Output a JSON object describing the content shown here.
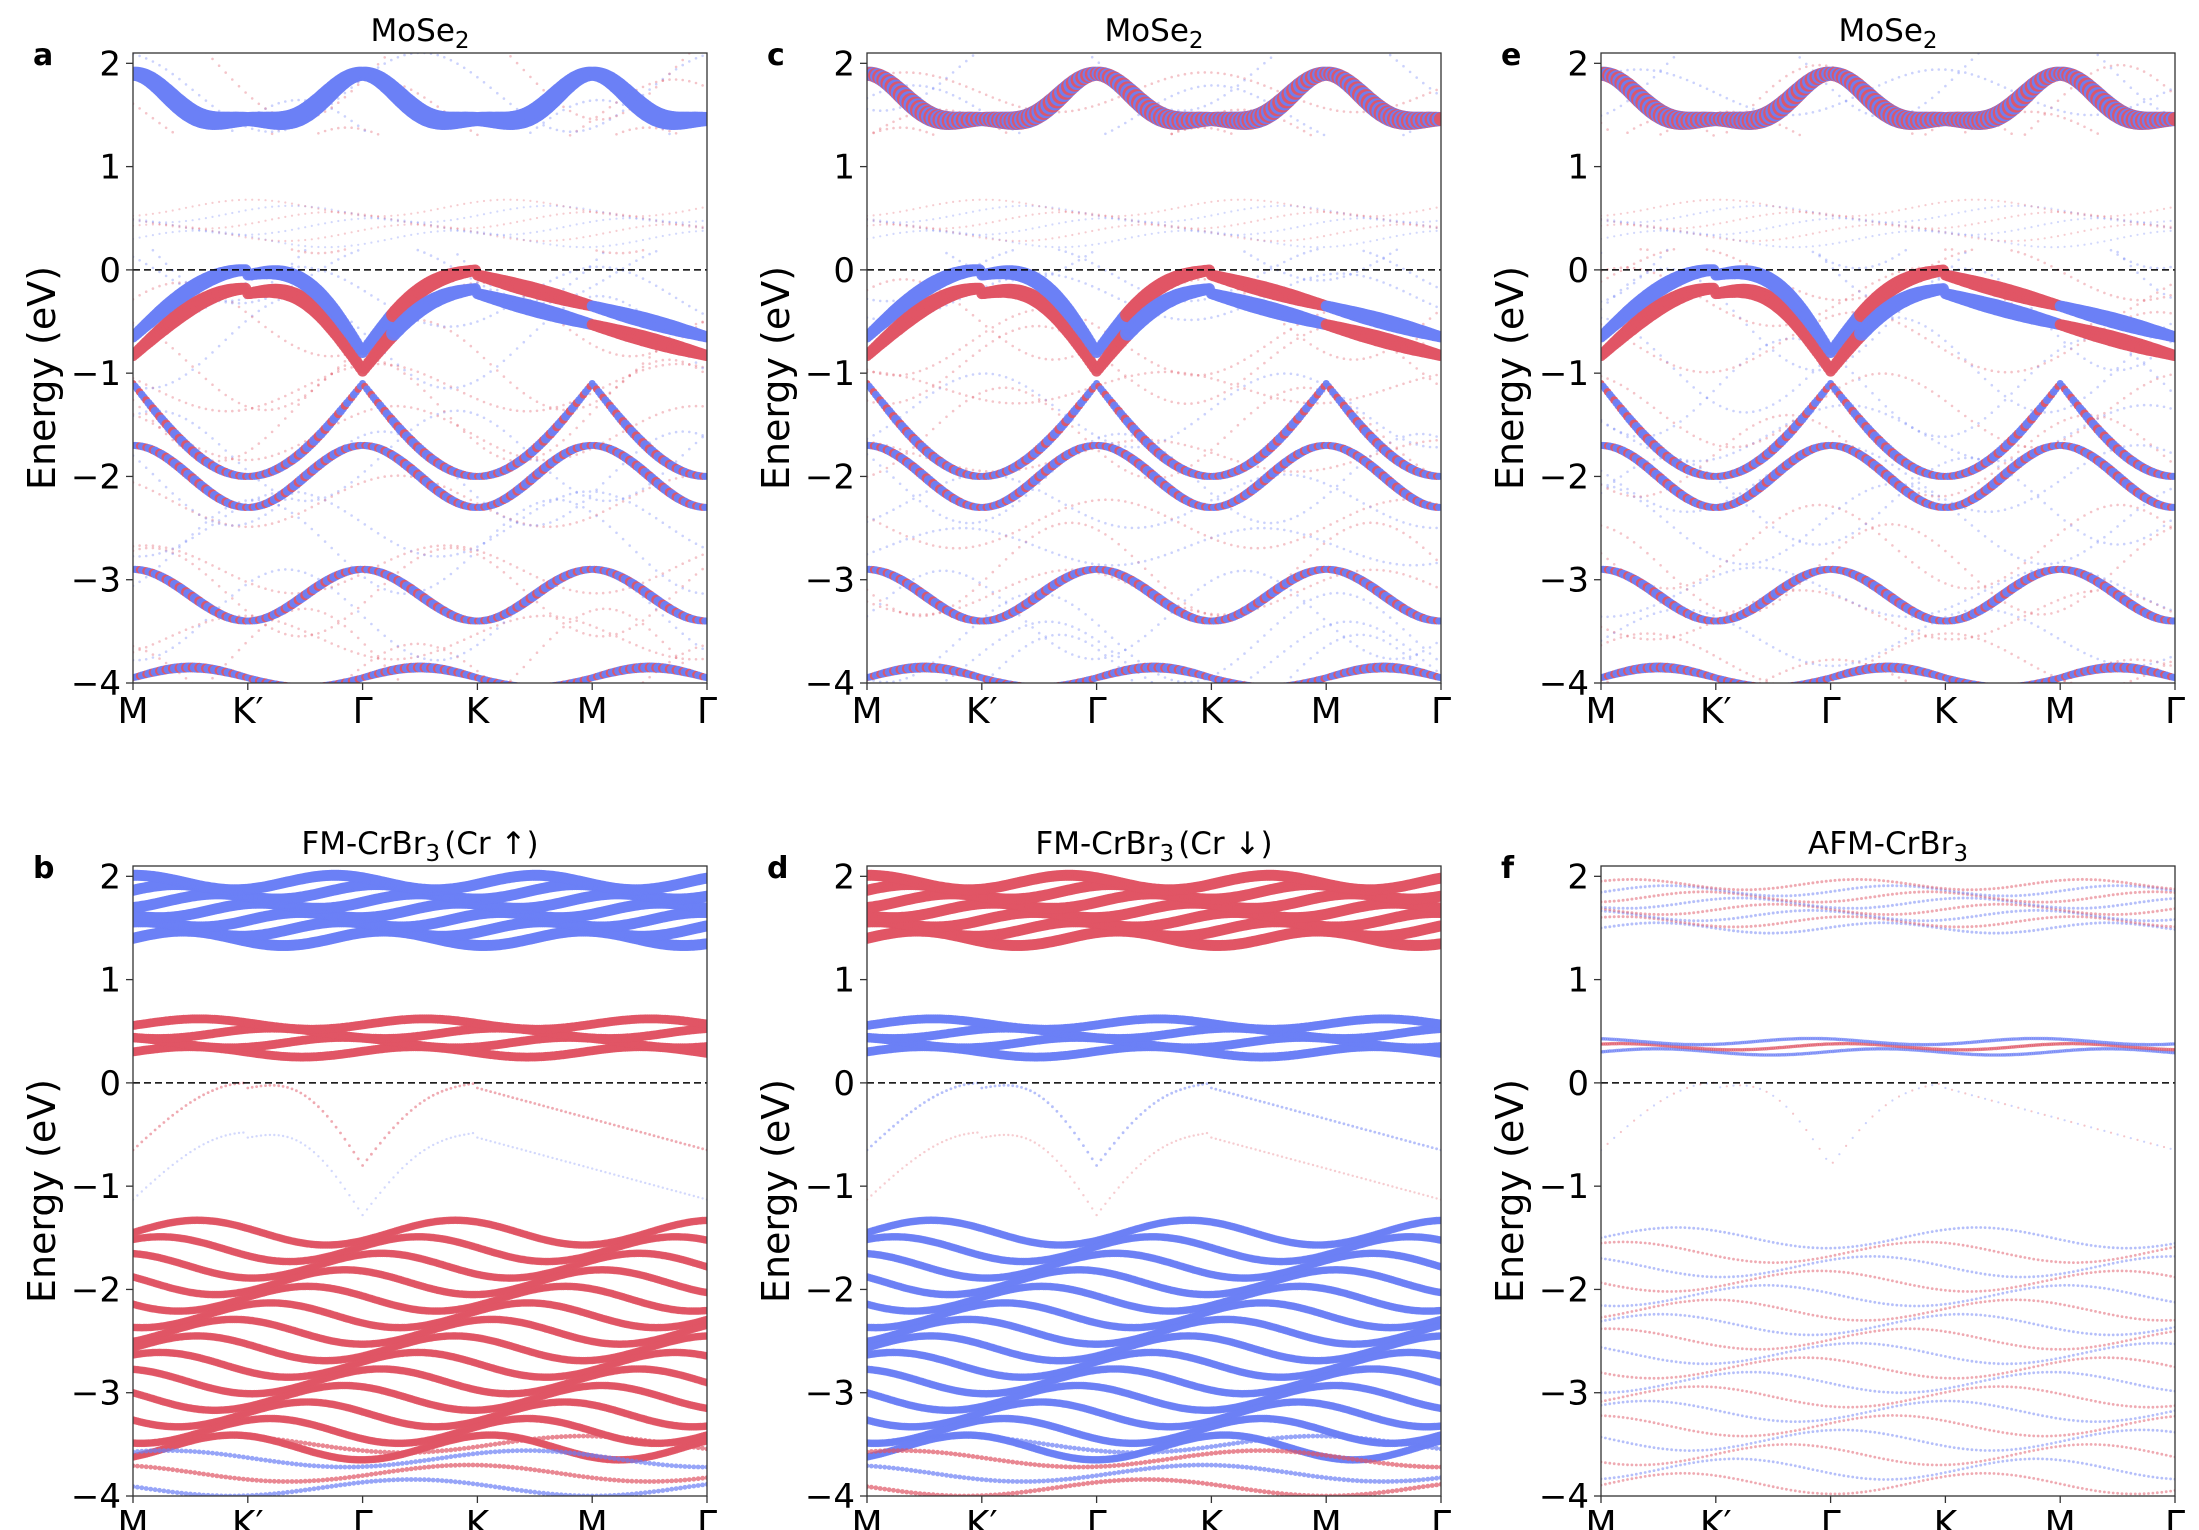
{
  "colors": {
    "spin_up": "#6b7ff5",
    "spin_down": "#e05565",
    "fermi_line": "#000000",
    "axes": "#333333"
  },
  "chart_data": [
    {
      "type": "scatter",
      "panel_label": "a",
      "title": "MoSe",
      "title_sub": "2",
      "title_suffix": "",
      "ylabel": "Energy (eV)",
      "ylim": [
        -4,
        2.1
      ],
      "yticks": [
        "−4",
        "−3",
        "−2",
        "−1",
        "0",
        "1",
        "2"
      ],
      "ytick_values": [
        -4,
        -3,
        -2,
        -1,
        0,
        1,
        2
      ],
      "kpath": [
        "M",
        "K′",
        "Γ",
        "K",
        "M",
        "Γ"
      ],
      "fermi_level": 0,
      "projection": "MoSe2"
    },
    {
      "type": "scatter",
      "panel_label": "c",
      "title": "MoSe",
      "title_sub": "2",
      "title_suffix": "",
      "ylabel": "Energy (eV)",
      "ylim": [
        -4,
        2.1
      ],
      "yticks": [
        "−4",
        "−3",
        "−2",
        "−1",
        "0",
        "1",
        "2"
      ],
      "ytick_values": [
        -4,
        -3,
        -2,
        -1,
        0,
        1,
        2
      ],
      "kpath": [
        "M",
        "K′",
        "Γ",
        "K",
        "M",
        "Γ"
      ],
      "fermi_level": 0,
      "projection": "MoSe2"
    },
    {
      "type": "scatter",
      "panel_label": "e",
      "title": "MoSe",
      "title_sub": "2",
      "title_suffix": "",
      "ylabel": "Energy (eV)",
      "ylim": [
        -4,
        2.1
      ],
      "yticks": [
        "−4",
        "−3",
        "−2",
        "−1",
        "0",
        "1",
        "2"
      ],
      "ytick_values": [
        -4,
        -3,
        -2,
        -1,
        0,
        1,
        2
      ],
      "kpath": [
        "M",
        "K′",
        "Γ",
        "K",
        "M",
        "Γ"
      ],
      "fermi_level": 0,
      "projection": "MoSe2"
    },
    {
      "type": "scatter",
      "panel_label": "b",
      "title": "FM-CrBr",
      "title_sub": "3",
      "title_suffix": "(Cr ↑)",
      "ylabel": "Energy (eV)",
      "ylim": [
        -4,
        2.1
      ],
      "yticks": [
        "−4",
        "−3",
        "−2",
        "−1",
        "0",
        "1",
        "2"
      ],
      "ytick_values": [
        -4,
        -3,
        -2,
        -1,
        0,
        1,
        2
      ],
      "kpath": [
        "M",
        "K′",
        "Γ",
        "K",
        "M",
        "Γ"
      ],
      "fermi_level": 0,
      "projection": "CrUp"
    },
    {
      "type": "scatter",
      "panel_label": "d",
      "title": "FM-CrBr",
      "title_sub": "3",
      "title_suffix": "(Cr ↓)",
      "ylabel": "Energy (eV)",
      "ylim": [
        -4,
        2.1
      ],
      "yticks": [
        "−4",
        "−3",
        "−2",
        "−1",
        "0",
        "1",
        "2"
      ],
      "ytick_values": [
        -4,
        -3,
        -2,
        -1,
        0,
        1,
        2
      ],
      "kpath": [
        "M",
        "K′",
        "Γ",
        "K",
        "M",
        "Γ"
      ],
      "fermi_level": 0,
      "projection": "CrDown"
    },
    {
      "type": "scatter",
      "panel_label": "f",
      "title": "AFM-CrBr",
      "title_sub": "3",
      "title_suffix": "",
      "ylabel": "Energy (eV)",
      "ylim": [
        -4,
        2.1
      ],
      "yticks": [
        "−4",
        "−3",
        "−2",
        "−1",
        "0",
        "1",
        "2"
      ],
      "ytick_values": [
        -4,
        -3,
        -2,
        -1,
        0,
        1,
        2
      ],
      "kpath": [
        "M",
        "K′",
        "Γ",
        "K",
        "M",
        "Γ"
      ],
      "fermi_level": 0,
      "projection": "AFM"
    }
  ]
}
